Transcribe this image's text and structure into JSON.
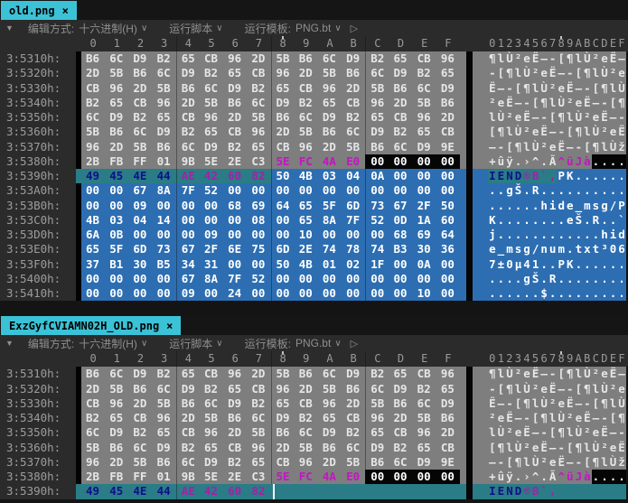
{
  "colors": {
    "tab_active_bg": "#3cc2d6",
    "tab_text": "#000000",
    "bar_bg": "#2b2b2b",
    "toolbar_text": "#8f8f8f",
    "gutter_bg": "#2b2b2b",
    "gutter_text": "#9d9d9d",
    "hex_area_bg": "#7e7e7e",
    "byte_text": "#e6e6e6",
    "selection_bg": "#2d6eb2",
    "selection_text": "#ffffff",
    "match_bg": "#2a7c86",
    "match_text": "#10108a",
    "modified_byte_text": "#c415c4",
    "zero_fill_bg": "#050505",
    "zero_fill_text": "#ffffff"
  },
  "toolbar": {
    "collapse_icon": "▼",
    "edit_mode_label": "编辑方式:",
    "edit_mode_value": "十六进制(H)",
    "chevron": "∨",
    "run_script_label": "运行脚本",
    "run_template_label": "运行模板:",
    "run_template_value": "PNG.bt",
    "play_icon": "▷"
  },
  "hex_columns": [
    "0",
    "1",
    "2",
    "3",
    "4",
    "5",
    "6",
    "7",
    "8",
    "9",
    "A",
    "B",
    "C",
    "D",
    "E",
    "F"
  ],
  "ascii_header": "0123456789ABCDEF",
  "caret_column": 8,
  "panels": [
    {
      "tab": {
        "title": "old.png",
        "close_icon": "×"
      },
      "rows": [
        {
          "addr": "3:5310h:",
          "bg": "g",
          "hex": [
            [
              "p",
              "B6 6C D9 B2 65 CB 96 2D 5B B6 6C D9 B2 65 CB 96"
            ]
          ],
          "ascii": [
            [
              "p",
              "¶lÙ²eË–-[¶lÙ²eË–"
            ]
          ]
        },
        {
          "addr": "3:5320h:",
          "bg": "g",
          "hex": [
            [
              "p",
              "2D 5B B6 6C D9 B2 65 CB 96 2D 5B B6 6C D9 B2 65"
            ]
          ],
          "ascii": [
            [
              "p",
              "-[¶lÙ²eË–-[¶lÙ²e"
            ]
          ]
        },
        {
          "addr": "3:5330h:",
          "bg": "g",
          "hex": [
            [
              "p",
              "CB 96 2D 5B B6 6C D9 B2 65 CB 96 2D 5B B6 6C D9"
            ]
          ],
          "ascii": [
            [
              "p",
              "Ë–-[¶lÙ²eË–-[¶lÙ"
            ]
          ]
        },
        {
          "addr": "3:5340h:",
          "bg": "g",
          "hex": [
            [
              "p",
              "B2 65 CB 96 2D 5B B6 6C D9 B2 65 CB 96 2D 5B B6"
            ]
          ],
          "ascii": [
            [
              "p",
              "²eË–-[¶lÙ²eË–-[¶"
            ]
          ]
        },
        {
          "addr": "3:5350h:",
          "bg": "g",
          "hex": [
            [
              "p",
              "6C D9 B2 65 CB 96 2D 5B B6 6C D9 B2 65 CB 96 2D"
            ]
          ],
          "ascii": [
            [
              "p",
              "lÙ²eË–-[¶lÙ²eË–-"
            ]
          ]
        },
        {
          "addr": "3:5360h:",
          "bg": "g",
          "hex": [
            [
              "p",
              "5B B6 6C D9 B2 65 CB 96 2D 5B B6 6C D9 B2 65 CB"
            ]
          ],
          "ascii": [
            [
              "p",
              "[¶lÙ²eË–-[¶lÙ²eË"
            ]
          ]
        },
        {
          "addr": "3:5370h:",
          "bg": "g",
          "hex": [
            [
              "p",
              "96 2D 5B B6 6C D9 B2 65 CB 96 2D 5B B6 6C D9 9E"
            ]
          ],
          "ascii": [
            [
              "p",
              "–-[¶lÙ²eË–-[¶lÙž"
            ]
          ]
        },
        {
          "addr": "3:5380h:",
          "bg": "g",
          "hex": [
            [
              "p",
              "2B FB FF 01 9B 5E 2E C3"
            ],
            [
              "m",
              "5E FC 4A E0"
            ],
            [
              "z",
              "00 00 00 00"
            ]
          ],
          "ascii": [
            [
              "p",
              "+ûÿ.›^.Ã"
            ],
            [
              "m",
              "^üJà"
            ],
            [
              "z",
              "...."
            ]
          ]
        },
        {
          "addr": "3:5390h:",
          "bg": "s",
          "strip": "t",
          "hex": [
            [
              "ti",
              "49 45 4E 44"
            ],
            [
              "tm",
              "AE 42 60 82"
            ],
            [
              "s",
              "50 4B 03 04 0A 00 00 00"
            ]
          ],
          "ascii": [
            [
              "ti",
              "IEND"
            ],
            [
              "tm",
              "®B`‚"
            ],
            [
              "s",
              "PK......"
            ]
          ]
        },
        {
          "addr": "3:53A0h:",
          "bg": "s",
          "hex": [
            [
              "s",
              "00 00 67 8A 7F 52 00 00 00 00 00 00 00 00 00 00"
            ]
          ],
          "ascii": [
            [
              "s",
              "..gŠ.R.........."
            ]
          ]
        },
        {
          "addr": "3:53B0h:",
          "bg": "s",
          "hex": [
            [
              "s",
              "00 00 09 00 00 00 68 69 64 65 5F 6D 73 67 2F 50"
            ]
          ],
          "ascii": [
            [
              "s",
              "......hide_msg/P"
            ]
          ]
        },
        {
          "addr": "3:53C0h:",
          "bg": "s",
          "hex": [
            [
              "s",
              "4B 03 04 14 00 00 00 08 00 65 8A 7F 52 0D 1A 60"
            ]
          ],
          "ascii": [
            [
              "s",
              "K........eŠ.R..`"
            ]
          ]
        },
        {
          "addr": "3:53D0h:",
          "bg": "s",
          "hex": [
            [
              "s",
              "6A 0B 00 00 00 09 00 00 00 10 00 00 00 68 69 64"
            ]
          ],
          "ascii": [
            [
              "s",
              "j............hid"
            ]
          ]
        },
        {
          "addr": "3:53E0h:",
          "bg": "s",
          "hex": [
            [
              "s",
              "65 5F 6D 73 67 2F 6E 75 6D 2E 74 78 74 B3 30 36"
            ]
          ],
          "ascii": [
            [
              "s",
              "e_msg/num.txt³06"
            ]
          ]
        },
        {
          "addr": "3:53F0h:",
          "bg": "s",
          "hex": [
            [
              "s",
              "37 B1 30 B5 34 31 00 00 50 4B 01 02 1F 00 0A 00"
            ]
          ],
          "ascii": [
            [
              "s",
              "7±0µ41..PK......"
            ]
          ]
        },
        {
          "addr": "3:5400h:",
          "bg": "s",
          "hex": [
            [
              "s",
              "00 00 00 00 67 8A 7F 52 00 00 00 00 00 00 00 00"
            ]
          ],
          "ascii": [
            [
              "s",
              "....gŠ.R........"
            ]
          ]
        },
        {
          "addr": "3:5410h:",
          "bg": "s",
          "hex": [
            [
              "s",
              "00 00 00 00 09 00 24 00 00 00 00 00 00 00 10 00"
            ]
          ],
          "ascii": [
            [
              "s",
              "......$........."
            ]
          ]
        }
      ]
    },
    {
      "tab": {
        "title": "ExzGyfCVIAMN02H_OLD.png",
        "close_icon": "×"
      },
      "rows": [
        {
          "addr": "3:5310h:",
          "bg": "g",
          "hex": [
            [
              "p",
              "B6 6C D9 B2 65 CB 96 2D 5B B6 6C D9 B2 65 CB 96"
            ]
          ],
          "ascii": [
            [
              "p",
              "¶lÙ²eË–-[¶lÙ²eË–"
            ]
          ]
        },
        {
          "addr": "3:5320h:",
          "bg": "g",
          "hex": [
            [
              "p",
              "2D 5B B6 6C D9 B2 65 CB 96 2D 5B B6 6C D9 B2 65"
            ]
          ],
          "ascii": [
            [
              "p",
              "-[¶lÙ²eË–-[¶lÙ²e"
            ]
          ]
        },
        {
          "addr": "3:5330h:",
          "bg": "g",
          "hex": [
            [
              "p",
              "CB 96 2D 5B B6 6C D9 B2 65 CB 96 2D 5B B6 6C D9"
            ]
          ],
          "ascii": [
            [
              "p",
              "Ë–-[¶lÙ²eË–-[¶lÙ"
            ]
          ]
        },
        {
          "addr": "3:5340h:",
          "bg": "g",
          "hex": [
            [
              "p",
              "B2 65 CB 96 2D 5B B6 6C D9 B2 65 CB 96 2D 5B B6"
            ]
          ],
          "ascii": [
            [
              "p",
              "²eË–-[¶lÙ²eË–-[¶"
            ]
          ]
        },
        {
          "addr": "3:5350h:",
          "bg": "g",
          "hex": [
            [
              "p",
              "6C D9 B2 65 CB 96 2D 5B B6 6C D9 B2 65 CB 96 2D"
            ]
          ],
          "ascii": [
            [
              "p",
              "lÙ²eË–-[¶lÙ²eË–-"
            ]
          ]
        },
        {
          "addr": "3:5360h:",
          "bg": "g",
          "hex": [
            [
              "p",
              "5B B6 6C D9 B2 65 CB 96 2D 5B B6 6C D9 B2 65 CB"
            ]
          ],
          "ascii": [
            [
              "p",
              "[¶lÙ²eË–-[¶lÙ²eË"
            ]
          ]
        },
        {
          "addr": "3:5370h:",
          "bg": "g",
          "hex": [
            [
              "p",
              "96 2D 5B B6 6C D9 B2 65 CB 96 2D 5B B6 6C D9 9E"
            ]
          ],
          "ascii": [
            [
              "p",
              "–-[¶lÙ²eË–-[¶lÙž"
            ]
          ]
        },
        {
          "addr": "3:5380h:",
          "bg": "g",
          "hex": [
            [
              "p",
              "2B FB FF 01 9B 5E 2E C3"
            ],
            [
              "m",
              "5E FC 4A E0"
            ],
            [
              "z",
              "00 00 00 00"
            ]
          ],
          "ascii": [
            [
              "p",
              "+ûÿ.›^.Ã"
            ],
            [
              "m",
              "^üJà"
            ],
            [
              "z",
              "...."
            ]
          ]
        },
        {
          "addr": "3:5390h:",
          "bg": "t",
          "strip": "t",
          "hex": [
            [
              "ti",
              "49 45 4E 44"
            ],
            [
              "tm",
              "AE 42 60 82"
            ],
            [
              "caret",
              ""
            ]
          ],
          "ascii": [
            [
              "ti",
              "IEND"
            ],
            [
              "tm",
              "®B`‚"
            ]
          ]
        }
      ]
    }
  ]
}
